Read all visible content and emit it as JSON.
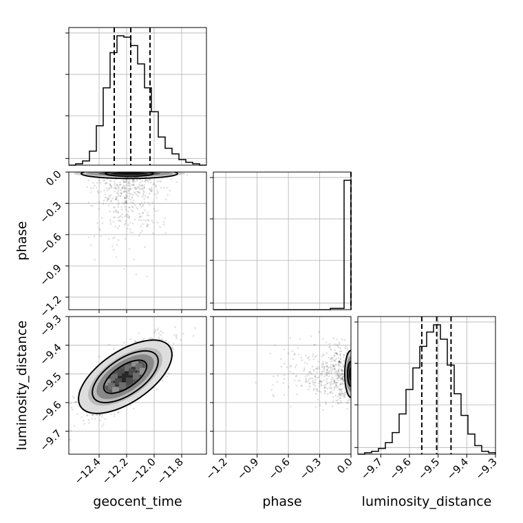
{
  "chart_data": {
    "type": "corner",
    "parameters": [
      "geocent_time",
      "phase",
      "luminosity_distance"
    ],
    "axis_labels": {
      "x": [
        "geocent_time",
        "phase",
        "luminosity_distance"
      ],
      "y": [
        "phase",
        "luminosity_distance"
      ]
    },
    "ranges": {
      "geocent_time": [
        -12.62,
        -11.62
      ],
      "phase": [
        -1.32,
        0.0
      ],
      "luminosity_distance": [
        -9.78,
        -9.3
      ]
    },
    "ticks": {
      "geocent_time": [
        "-12.4",
        "-12.2",
        "-12.0",
        "-11.8"
      ],
      "phase": [
        "-1.2",
        "-0.9",
        "-0.6",
        "-0.3",
        "0.0"
      ],
      "luminosity_distance": [
        "-9.7",
        "-9.6",
        "-9.5",
        "-9.4",
        "-9.3"
      ]
    },
    "quantiles": {
      "geocent_time": [
        -12.29,
        -12.17,
        -12.03
      ],
      "phase": [
        0.0
      ],
      "luminosity_distance": [
        -9.557,
        -9.505,
        -9.455
      ]
    },
    "histograms": {
      "geocent_time": {
        "edges_start": -12.62,
        "bin_width": 0.05,
        "counts": [
          0,
          1,
          3,
          10,
          28,
          55,
          80,
          92,
          91,
          85,
          72,
          55,
          38,
          20,
          12,
          8,
          4,
          2,
          1,
          0
        ]
      },
      "phase": {
        "edges_start": -1.32,
        "bin_width": 0.066,
        "counts": [
          0,
          0,
          0,
          0,
          0,
          0,
          0,
          0,
          0,
          0,
          0,
          0,
          0,
          0,
          0,
          0,
          0,
          1,
          1,
          100
        ]
      },
      "luminosity_distance": {
        "edges_start": -9.78,
        "bin_width": 0.024,
        "counts": [
          0,
          1,
          2,
          4,
          8,
          15,
          28,
          45,
          60,
          75,
          85,
          90,
          80,
          62,
          42,
          27,
          14,
          6,
          2,
          1
        ]
      }
    },
    "contours_2d": [
      {
        "x": "geocent_time",
        "y": "luminosity_distance",
        "center": [
          -12.21,
          -9.51
        ],
        "corr": 0.7
      },
      {
        "x": "geocent_time",
        "y": "phase",
        "center": [
          -12.18,
          -0.015
        ],
        "note": "concentrated at phase ~ 0"
      },
      {
        "x": "phase",
        "y": "luminosity_distance",
        "center": [
          -0.01,
          -9.5
        ],
        "note": "concentrated at phase ~ 0"
      }
    ],
    "grid": true
  }
}
